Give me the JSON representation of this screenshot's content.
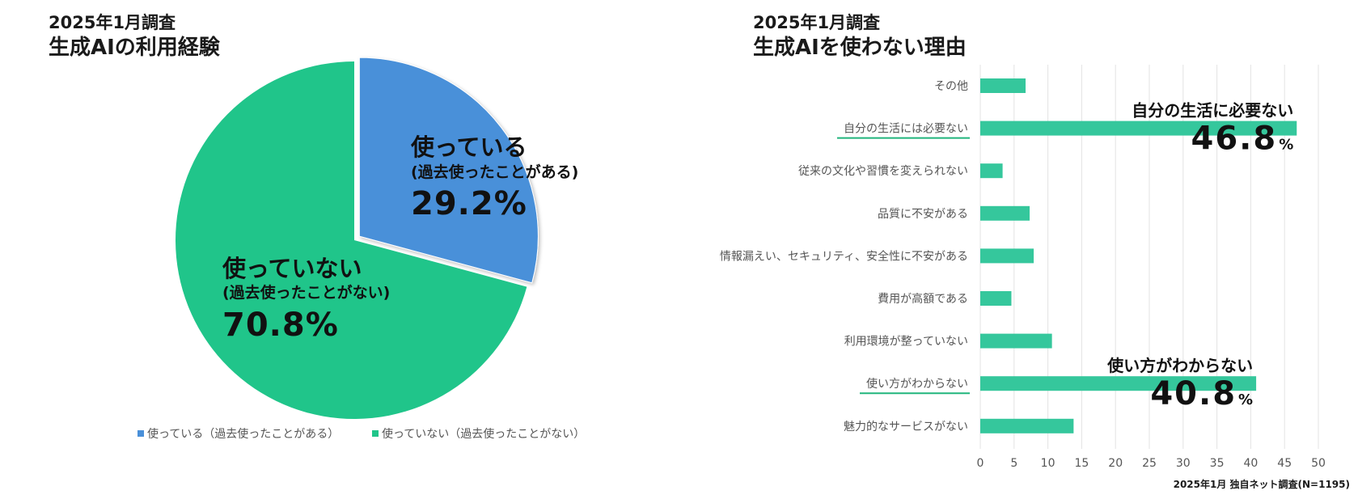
{
  "colors": {
    "used": "#4A90D9",
    "not_used": "#20C58A",
    "bar": "#35C79C",
    "underline": "#20B57C",
    "grid": "#e3e3e3",
    "text_dark": "#111111",
    "text_gray": "#555555"
  },
  "footnote": "2025年1月 独自ネット調査(N=1195)",
  "chart_data": [
    {
      "type": "pie",
      "subtitle": "2025年1月調査",
      "title": "生成AIの利用経験",
      "slices": [
        {
          "label": "使っている",
          "sublabel": "(過去使ったことがある)",
          "value": 29.2,
          "display": "29.2%",
          "legend": "使っている（過去使ったことがある）",
          "exploded": true
        },
        {
          "label": "使っていない",
          "sublabel": "(過去使ったことがない)",
          "value": 70.8,
          "display": "70.8%",
          "legend": "使っていない（過去使ったことがない）",
          "exploded": false
        }
      ],
      "legend_position": "bottom"
    },
    {
      "type": "bar",
      "orientation": "horizontal",
      "subtitle": "2025年1月調査",
      "title": "生成AIを使わない理由",
      "categories": [
        "その他",
        "自分の生活には必要ない",
        "従来の文化や習慣を変えられない",
        "品質に不安がある",
        "情報漏えい、セキュリティ、安全性に不安がある",
        "費用が高額である",
        "利用環境が整っていない",
        "使い方がわからない",
        "魅力的なサービスがない"
      ],
      "values": [
        6.7,
        46.8,
        3.3,
        7.3,
        7.9,
        4.6,
        10.6,
        40.8,
        13.8
      ],
      "xlim": [
        0,
        50
      ],
      "xticks": [
        0,
        5,
        10,
        15,
        20,
        25,
        30,
        35,
        40,
        45,
        50
      ],
      "grid": true,
      "highlighted": [
        {
          "index": 1,
          "label": "自分の生活に必要ない",
          "value": "46.8",
          "unit": "%"
        },
        {
          "index": 7,
          "label": "使い方がわからない",
          "value": "40.8",
          "unit": "%"
        }
      ]
    }
  ]
}
